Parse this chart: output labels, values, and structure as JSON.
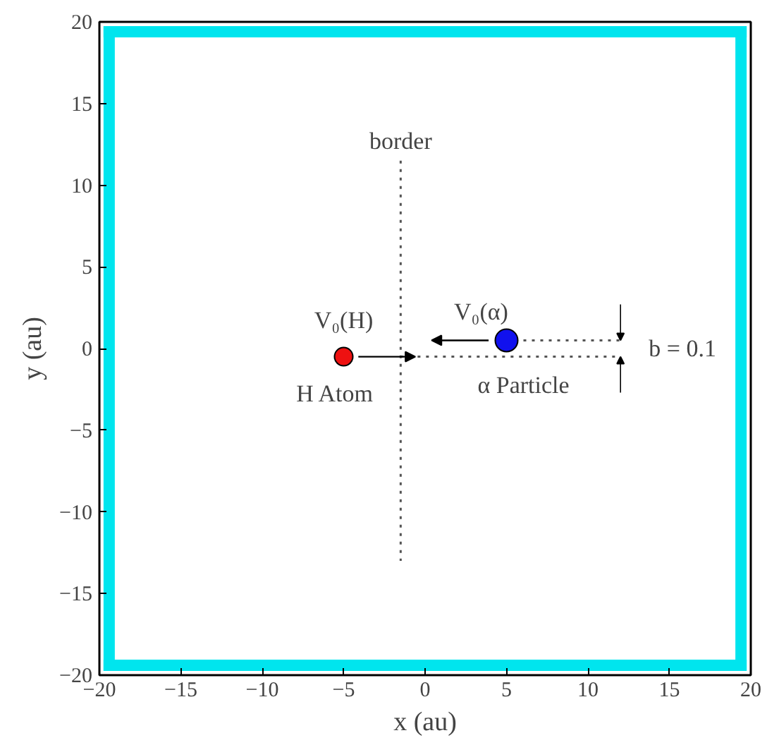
{
  "chart_data": {
    "type": "scatter",
    "xlabel": "x (au)",
    "ylabel": "y (au)",
    "xlim": [
      -20,
      20
    ],
    "ylim": [
      -20,
      20
    ],
    "xticks": [
      -20,
      -15,
      -10,
      -5,
      0,
      5,
      10,
      15,
      20
    ],
    "yticks": [
      -20,
      -15,
      -10,
      -5,
      0,
      5,
      10,
      15,
      20
    ],
    "grid": false,
    "marker": "circle",
    "series": [
      {
        "type": "line",
        "color": "#00e5ee",
        "x": [
          -19.4,
          19.4
        ],
        "values": [
          19.4,
          19.4
        ],
        "marker": "none",
        "line_style": "solid"
      },
      {
        "type": "line",
        "color": "#00e5ee",
        "x": [
          19.4,
          19.4
        ],
        "values": [
          19.4,
          -19.4
        ],
        "marker": "none",
        "line_style": "solid"
      },
      {
        "type": "line",
        "color": "#00e5ee",
        "x": [
          19.4,
          -19.4
        ],
        "values": [
          -19.4,
          -19.4
        ],
        "marker": "none",
        "line_style": "solid"
      },
      {
        "type": "line",
        "color": "#00e5ee",
        "x": [
          -19.4,
          -19.4
        ],
        "values": [
          -19.4,
          19.4
        ],
        "marker": "none",
        "line_style": "solid"
      },
      {
        "type": "line",
        "color": "#555555",
        "x": [
          -1.5,
          -1.5
        ],
        "values": [
          11.5,
          -13
        ],
        "marker": "none",
        "line_style": "dotted"
      },
      {
        "type": "line",
        "color": "#555555",
        "x": [
          -1.5,
          12
        ],
        "values": [
          -0.5,
          -0.5
        ],
        "marker": "none",
        "line_style": "dotted"
      },
      {
        "type": "line",
        "color": "#555555",
        "x": [
          5,
          12
        ],
        "values": [
          0.5,
          0.5
        ],
        "marker": "none",
        "line_style": "dotted"
      },
      {
        "color": "#ee1111",
        "x": [
          -5
        ],
        "values": [
          -0.5
        ]
      },
      {
        "color": "#1111ee",
        "x": [
          5
        ],
        "values": [
          0.5
        ]
      }
    ],
    "annotations": [
      "border",
      {
        "text": "V₀(H)",
        "x": -5,
        "y": -0.5
      },
      "V₀(α)",
      {
        "text": "H Atom",
        "x": -5,
        "y": -0.5
      },
      "α Particle",
      "b = 0.1"
    ]
  }
}
